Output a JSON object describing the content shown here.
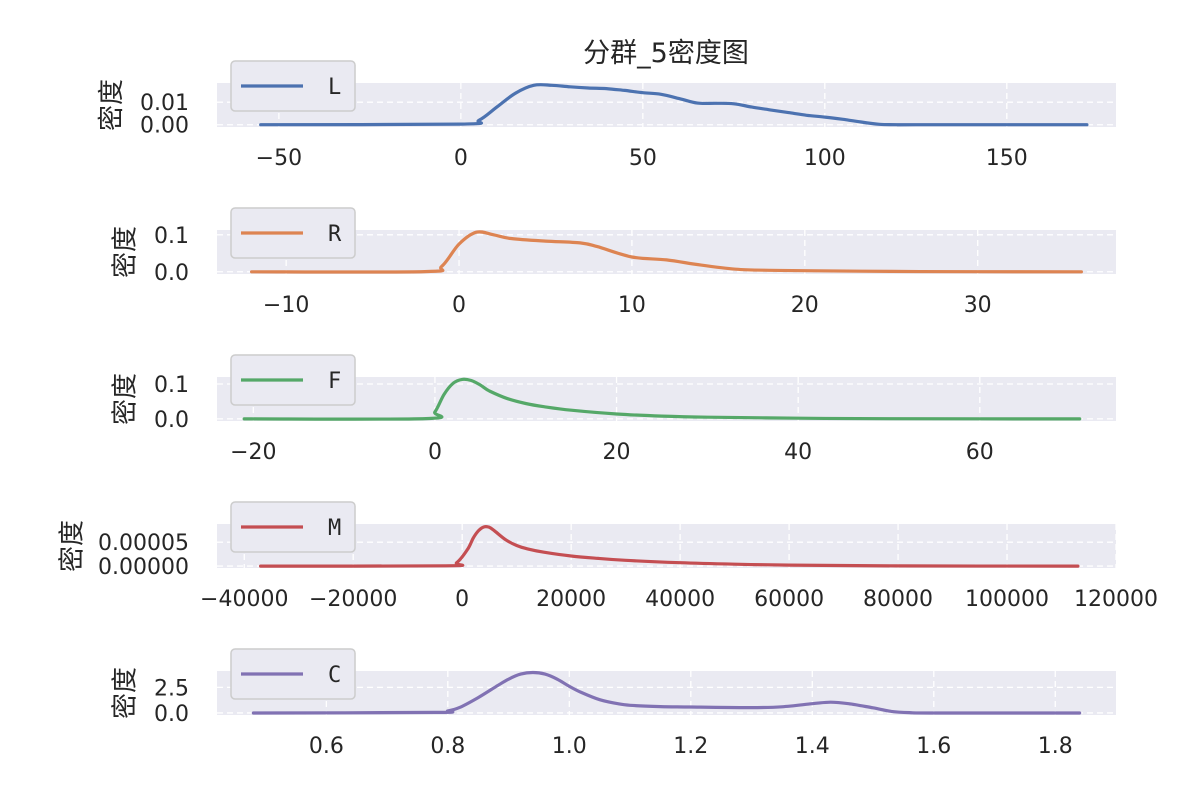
{
  "figure_title": "分群_5密度图",
  "chart_data": [
    {
      "type": "line",
      "series": [
        {
          "name": "L",
          "color": "#4c72b0",
          "x": [
            -55,
            0,
            5,
            10,
            15,
            20,
            25,
            30,
            35,
            40,
            45,
            50,
            55,
            60,
            65,
            70,
            75,
            80,
            85,
            90,
            95,
            100,
            105,
            110,
            115,
            120,
            125,
            172
          ],
          "y": [
            0,
            0.0003,
            0.002,
            0.008,
            0.014,
            0.0175,
            0.0175,
            0.0168,
            0.0163,
            0.016,
            0.0152,
            0.0142,
            0.0135,
            0.0116,
            0.0096,
            0.0095,
            0.0093,
            0.0078,
            0.0066,
            0.0054,
            0.0042,
            0.0034,
            0.0024,
            0.0012,
            0.0002,
            0,
            0,
            0
          ]
        }
      ],
      "ylabel": "密度",
      "xticks": [
        -50,
        0,
        50,
        100,
        150
      ],
      "xtick_labels": [
        "−50",
        "0",
        "50",
        "100",
        "150"
      ],
      "yticks": [
        0,
        0.01
      ],
      "ytick_labels": [
        "0.00",
        "0.01"
      ],
      "xlim": [
        -67,
        180
      ],
      "ylim": [
        -0.001,
        0.0185
      ],
      "grid": true,
      "legend": "top-left"
    },
    {
      "type": "line",
      "series": [
        {
          "name": "R",
          "color": "#dd8452",
          "x": [
            -12,
            -2,
            -1,
            0,
            1,
            2,
            3,
            5,
            7,
            8,
            10,
            12,
            14,
            16,
            18,
            20,
            25,
            30,
            36
          ],
          "y": [
            0,
            0.0005,
            0.015,
            0.075,
            0.107,
            0.1,
            0.09,
            0.083,
            0.078,
            0.068,
            0.04,
            0.032,
            0.018,
            0.007,
            0.004,
            0.003,
            0.001,
            0.0002,
            0
          ]
        }
      ],
      "ylabel": "密度",
      "xticks": [
        -10,
        0,
        10,
        20,
        30
      ],
      "xtick_labels": [
        "−10",
        "0",
        "10",
        "20",
        "30"
      ],
      "yticks": [
        0,
        0.1
      ],
      "ytick_labels": [
        "0.0",
        "0.1"
      ],
      "xlim": [
        -14,
        38
      ],
      "ylim": [
        -0.006,
        0.113
      ],
      "grid": true,
      "legend": "top-left"
    },
    {
      "type": "line",
      "series": [
        {
          "name": "F",
          "color": "#55a868",
          "x": [
            -21,
            -1,
            0,
            1,
            2,
            3,
            4,
            5,
            6,
            8,
            10,
            12,
            15,
            20,
            25,
            30,
            40,
            50,
            71
          ],
          "y": [
            0,
            0.001,
            0.02,
            0.07,
            0.102,
            0.113,
            0.11,
            0.097,
            0.08,
            0.058,
            0.044,
            0.035,
            0.025,
            0.014,
            0.008,
            0.005,
            0.002,
            0.0005,
            0
          ]
        }
      ],
      "ylabel": "密度",
      "xticks": [
        -20,
        0,
        20,
        40,
        60
      ],
      "xtick_labels": [
        "−20",
        "0",
        "20",
        "40",
        "60"
      ],
      "yticks": [
        0,
        0.1
      ],
      "ytick_labels": [
        "0.0",
        "0.1"
      ],
      "xlim": [
        -24,
        75
      ],
      "ylim": [
        -0.006,
        0.12
      ],
      "grid": true,
      "legend": "top-left"
    },
    {
      "type": "line",
      "series": [
        {
          "name": "M",
          "color": "#c44e52",
          "x": [
            -37000,
            -3000,
            -1000,
            1000,
            2000,
            3000,
            4000,
            5000,
            6000,
            8000,
            10000,
            12000,
            15000,
            20000,
            25000,
            30000,
            40000,
            50000,
            60000,
            80000,
            113000
          ],
          "y": [
            0,
            5e-07,
            7e-06,
            3.5e-05,
            5.8e-05,
            7.4e-05,
            8.2e-05,
            8.1e-05,
            7.3e-05,
            5.5e-05,
            4.3e-05,
            3.6e-05,
            2.9e-05,
            2.1e-05,
            1.6e-05,
            1.2e-05,
            7e-06,
            4e-06,
            2e-06,
            4e-07,
            0
          ]
        }
      ],
      "ylabel": "密度",
      "xticks": [
        -40000,
        -20000,
        0,
        20000,
        40000,
        60000,
        80000,
        100000,
        120000
      ],
      "xtick_labels": [
        "−40000",
        "−20000",
        "0",
        "20000",
        "40000",
        "60000",
        "80000",
        "100000",
        "120000"
      ],
      "yticks": [
        0,
        5e-05
      ],
      "ytick_labels": [
        "0.00000",
        "0.00005"
      ],
      "xlim": [
        -45000,
        120000
      ],
      "ylim": [
        -4e-06,
        8.8e-05
      ],
      "grid": true,
      "legend": "top-left"
    },
    {
      "type": "line",
      "series": [
        {
          "name": "C",
          "color": "#8172b3",
          "x": [
            0.48,
            0.78,
            0.8,
            0.82,
            0.85,
            0.88,
            0.9,
            0.92,
            0.94,
            0.96,
            0.98,
            1.0,
            1.02,
            1.05,
            1.08,
            1.1,
            1.15,
            1.2,
            1.3,
            1.35,
            1.4,
            1.43,
            1.46,
            1.5,
            1.53,
            1.56,
            1.6,
            1.84
          ],
          "y": [
            0,
            0.05,
            0.2,
            0.55,
            1.5,
            2.6,
            3.3,
            3.8,
            3.95,
            3.8,
            3.3,
            2.6,
            2.0,
            1.3,
            0.9,
            0.75,
            0.62,
            0.58,
            0.52,
            0.6,
            0.9,
            1.05,
            0.9,
            0.5,
            0.15,
            0.03,
            0,
            0
          ]
        }
      ],
      "ylabel": "密度",
      "xticks": [
        0.6,
        0.8,
        1.0,
        1.2,
        1.4,
        1.6,
        1.8
      ],
      "xtick_labels": [
        "0.6",
        "0.8",
        "1.0",
        "1.2",
        "1.4",
        "1.6",
        "1.8"
      ],
      "yticks": [
        0,
        2.5
      ],
      "ytick_labels": [
        "0.0",
        "2.5"
      ],
      "xlim": [
        0.42,
        1.9
      ],
      "ylim": [
        -0.2,
        4.1
      ],
      "grid": true,
      "legend": "top-left"
    }
  ]
}
